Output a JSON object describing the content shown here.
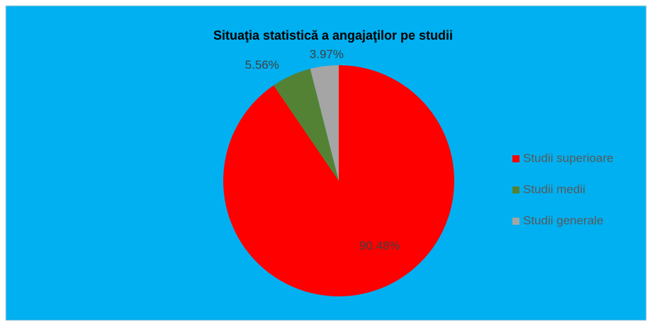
{
  "chart_data": {
    "type": "pie",
    "title": "Situaţia statistică a angajaţilor pe studii",
    "categories": [
      "Studii superioare",
      "Studii medii",
      "Studii generale"
    ],
    "values": [
      90.48,
      5.56,
      3.97
    ],
    "value_labels": [
      "90.48%",
      "5.56%",
      "3.97%"
    ],
    "colors": [
      "#ff0000",
      "#548235",
      "#a5a5a5"
    ],
    "legend": "right"
  }
}
